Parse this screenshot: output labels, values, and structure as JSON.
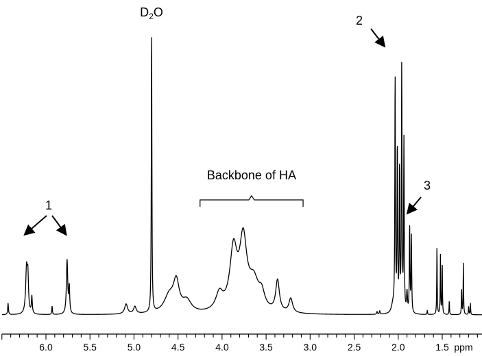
{
  "chart_data": {
    "type": "line",
    "title": "",
    "xlabel": "ppm",
    "ylabel": "",
    "x_axis": {
      "reversed": true,
      "range": [
        6.5,
        1.0
      ],
      "major_ticks": [
        6.0,
        5.5,
        5.0,
        4.5,
        4.0,
        3.5,
        3.0,
        2.5,
        2.0,
        1.5
      ],
      "major_tick_labels": [
        "6.0",
        "5.5",
        "5.0",
        "4.5",
        "4.0",
        "3.5",
        "3.0",
        "2.5",
        "2.0",
        "1.5"
      ],
      "minor_step": 0.1,
      "unit_label": "ppm"
    },
    "y_axis": {
      "visible": false,
      "range": [
        0,
        1
      ]
    },
    "grid": false,
    "series": [
      {
        "peaks": [
          {
            "x": 6.43,
            "height": 0.04,
            "width": 0.005
          },
          {
            "x": 6.22,
            "height": 0.16,
            "width": 0.012
          },
          {
            "x": 6.205,
            "height": 0.11,
            "width": 0.008
          },
          {
            "x": 6.16,
            "height": 0.06,
            "width": 0.006
          },
          {
            "x": 5.93,
            "height": 0.03,
            "width": 0.004
          },
          {
            "x": 5.76,
            "height": 0.19,
            "width": 0.009
          },
          {
            "x": 5.735,
            "height": 0.09,
            "width": 0.006
          },
          {
            "x": 5.09,
            "height": 0.035,
            "width": 0.02
          },
          {
            "x": 4.99,
            "height": 0.025,
            "width": 0.018
          },
          {
            "x": 4.8,
            "height": 1.0,
            "width": 0.004
          },
          {
            "x": 4.6,
            "height": 0.06,
            "width": 0.07
          },
          {
            "x": 4.52,
            "height": 0.1,
            "width": 0.04
          },
          {
            "x": 4.4,
            "height": 0.04,
            "width": 0.06
          },
          {
            "x": 4.03,
            "height": 0.06,
            "width": 0.05
          },
          {
            "x": 3.87,
            "height": 0.21,
            "width": 0.05
          },
          {
            "x": 3.76,
            "height": 0.24,
            "width": 0.05
          },
          {
            "x": 3.64,
            "height": 0.1,
            "width": 0.07
          },
          {
            "x": 3.55,
            "height": 0.05,
            "width": 0.04
          },
          {
            "x": 3.37,
            "height": 0.11,
            "width": 0.025
          },
          {
            "x": 3.22,
            "height": 0.05,
            "width": 0.025
          },
          {
            "x": 2.24,
            "height": 0.01,
            "width": 0.005
          },
          {
            "x": 2.21,
            "height": 0.012,
            "width": 0.005
          },
          {
            "x": 2.06,
            "height": 0.03,
            "width": 0.02
          },
          {
            "x": 2.035,
            "height": 0.82,
            "width": 0.004
          },
          {
            "x": 2.01,
            "height": 0.58,
            "width": 0.004
          },
          {
            "x": 1.985,
            "height": 0.5,
            "width": 0.004
          },
          {
            "x": 1.96,
            "height": 0.86,
            "width": 0.004
          },
          {
            "x": 1.935,
            "height": 0.6,
            "width": 0.004
          },
          {
            "x": 1.9,
            "height": 0.07,
            "width": 0.006
          },
          {
            "x": 1.87,
            "height": 0.3,
            "width": 0.004
          },
          {
            "x": 1.85,
            "height": 0.27,
            "width": 0.004
          },
          {
            "x": 1.67,
            "height": 0.015,
            "width": 0.003
          },
          {
            "x": 1.56,
            "height": 0.24,
            "width": 0.003
          },
          {
            "x": 1.52,
            "height": 0.21,
            "width": 0.003
          },
          {
            "x": 1.5,
            "height": 0.18,
            "width": 0.003
          },
          {
            "x": 1.42,
            "height": 0.05,
            "width": 0.003
          },
          {
            "x": 1.28,
            "height": 0.09,
            "width": 0.003
          },
          {
            "x": 1.26,
            "height": 0.18,
            "width": 0.003
          },
          {
            "x": 1.2,
            "height": 0.03,
            "width": 0.003
          },
          {
            "x": 1.18,
            "height": 0.04,
            "width": 0.003
          }
        ]
      }
    ],
    "annotations": [
      {
        "id": "d2o",
        "text_main": "D",
        "text_sub": "2",
        "text_tail": "O",
        "x": 4.8
      },
      {
        "id": "peak-1",
        "text": "1",
        "arrows_to": [
          6.22,
          5.77
        ]
      },
      {
        "id": "peak-2",
        "text": "2",
        "arrow_to": 1.97
      },
      {
        "id": "peak-3",
        "text": "3",
        "arrow_to": 1.87
      },
      {
        "id": "backbone",
        "text": "Backbone of HA",
        "bracket_from": 4.25,
        "bracket_to": 3.08
      }
    ]
  }
}
